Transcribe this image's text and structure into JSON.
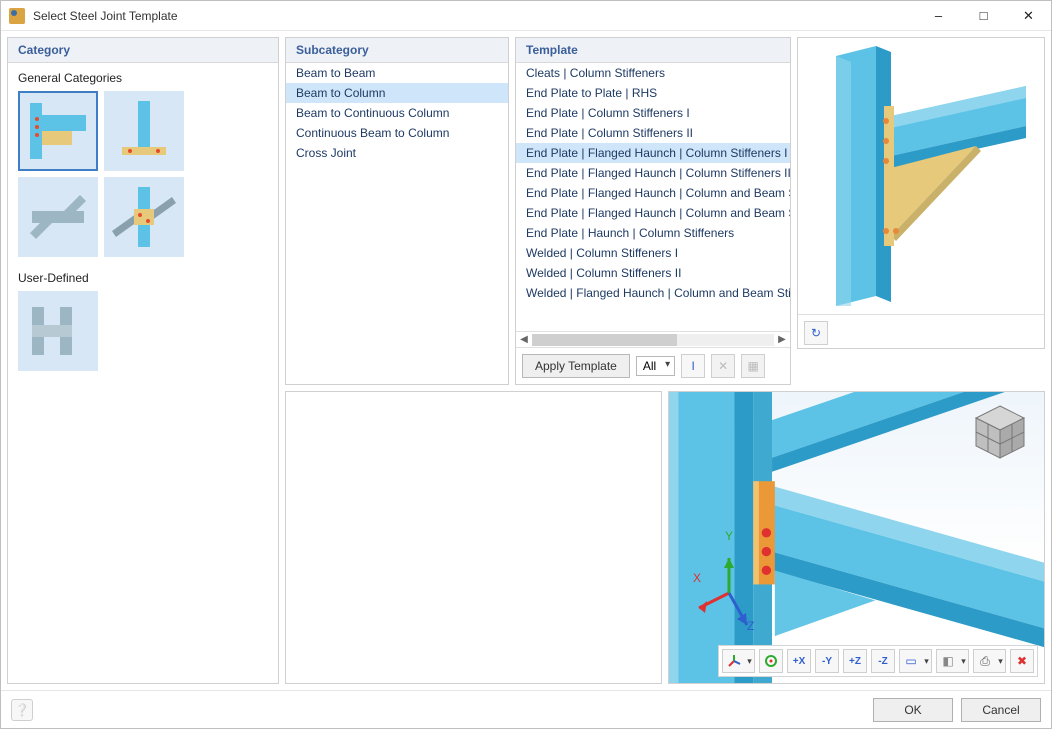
{
  "window": {
    "title": "Select Steel Joint Template"
  },
  "panels": {
    "category": "Category",
    "subcategory": "Subcategory",
    "template": "Template"
  },
  "category": {
    "general_label": "General Categories",
    "userdef_label": "User-Defined",
    "thumbs": [
      {
        "name": "cat-moment-joint",
        "selected": true
      },
      {
        "name": "cat-baseplate",
        "selected": false
      },
      {
        "name": "cat-splice",
        "selected": false
      },
      {
        "name": "cat-bracing",
        "selected": false
      }
    ],
    "userdef_thumbs": [
      {
        "name": "cat-userdef-1"
      }
    ]
  },
  "subcategory": {
    "items": [
      {
        "label": "Beam to Beam",
        "selected": false
      },
      {
        "label": "Beam to Column",
        "selected": true
      },
      {
        "label": "Beam to Continuous Column",
        "selected": false
      },
      {
        "label": "Continuous Beam to Column",
        "selected": false
      },
      {
        "label": "Cross Joint",
        "selected": false
      }
    ]
  },
  "template": {
    "items": [
      {
        "label": "Cleats | Column Stiffeners",
        "selected": false
      },
      {
        "label": "End Plate to Plate | RHS",
        "selected": false
      },
      {
        "label": "End Plate | Column Stiffeners I",
        "selected": false
      },
      {
        "label": "End Plate | Column Stiffeners II",
        "selected": false
      },
      {
        "label": "End Plate | Flanged Haunch | Column Stiffeners I",
        "selected": true
      },
      {
        "label": "End Plate | Flanged Haunch | Column Stiffeners II",
        "selected": false
      },
      {
        "label": "End Plate | Flanged Haunch | Column and Beam Stiffeners I",
        "selected": false
      },
      {
        "label": "End Plate | Flanged Haunch | Column and Beam Stiffeners II",
        "selected": false
      },
      {
        "label": "End Plate | Haunch | Column Stiffeners",
        "selected": false
      },
      {
        "label": "Welded | Column Stiffeners I",
        "selected": false
      },
      {
        "label": "Welded | Column Stiffeners II",
        "selected": false
      },
      {
        "label": "Welded | Flanged Haunch | Column and Beam Stiffeners",
        "selected": false
      }
    ],
    "apply_label": "Apply Template",
    "filter_label": "All"
  },
  "axes": {
    "x": "X",
    "y": "Y",
    "z": "Z"
  },
  "colors": {
    "steel": "#5cc3e6",
    "steel_dark": "#2d9bc7",
    "plate": "#e6c97a",
    "plate_dark": "#c9b169",
    "bolt": "#e64b2e",
    "bolt_orange": "#e8883a",
    "accent": "#3a5e9a",
    "x_axis": "#e03030",
    "y_axis": "#2eaa2e",
    "z_axis": "#2e5ecf"
  },
  "footer": {
    "ok": "OK",
    "cancel": "Cancel"
  }
}
